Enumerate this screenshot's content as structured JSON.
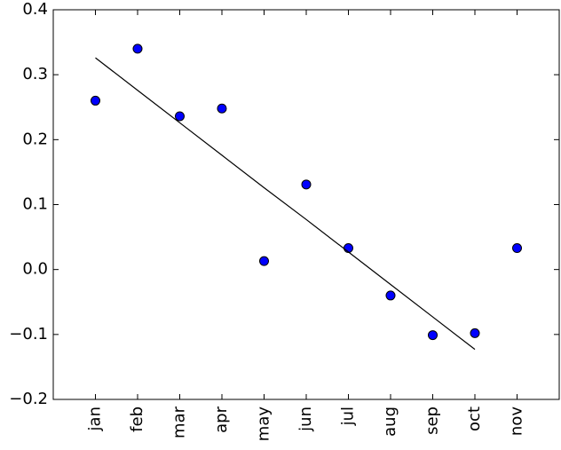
{
  "chart_data": {
    "type": "scatter",
    "categories": [
      "jan",
      "feb",
      "mar",
      "apr",
      "may",
      "jun",
      "jul",
      "aug",
      "sep",
      "oct",
      "nov"
    ],
    "series": [
      {
        "type": "scatter",
        "color": "#0000ff",
        "values": [
          0.26,
          0.34,
          0.236,
          0.248,
          0.013,
          0.131,
          0.033,
          -0.04,
          -0.101,
          -0.098,
          0.033
        ]
      },
      {
        "type": "line",
        "color": "#000000",
        "values": [
          0.326,
          0.276,
          0.226,
          0.176,
          0.126,
          0.077,
          0.027,
          -0.023,
          -0.073,
          -0.123,
          null
        ]
      }
    ],
    "ylim": [
      -0.2,
      0.4
    ],
    "yticks": [
      {
        "value": -0.2,
        "label": "−0.2"
      },
      {
        "value": -0.1,
        "label": "−0.1"
      },
      {
        "value": 0,
        "label": "0.0"
      },
      0.1,
      0.2,
      0.3,
      0.4
    ],
    "grid": false
  }
}
